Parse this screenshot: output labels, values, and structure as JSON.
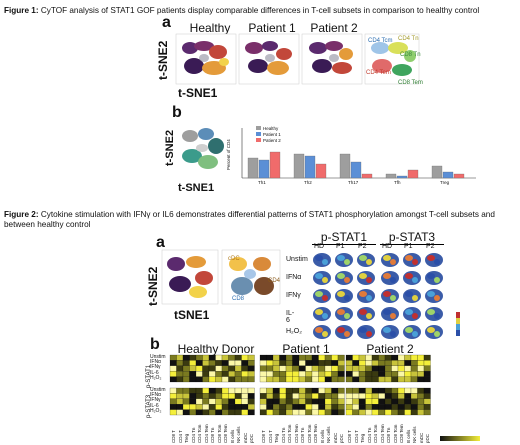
{
  "figure1": {
    "caption_label": "Figure 1:",
    "caption_text": " CyTOF analysis of STAT1 GOF patients display comparable differences in T-cell subsets in comparison to healthy control",
    "panel_a": "a",
    "panel_b": "b",
    "columns": [
      "Healthy",
      "Patient 1",
      "Patient 2"
    ],
    "y_axis": "t-SNE2",
    "x_axis": "t-SNE1",
    "map_labels": [
      "CD4 Tcm",
      "CD4 Tn",
      "CD8 Tn",
      "CD4 Tem",
      "CD8 Tem"
    ],
    "legend": [
      "Healthy",
      "Patient 1",
      "Patient 2"
    ],
    "bar_ylabel": "Percent of CD4",
    "bar_categories": [
      "Th1",
      "Th2",
      "Th17",
      "Tfh",
      "Treg"
    ]
  },
  "figure2": {
    "caption_label": "Figure 2:",
    "caption_text": " Cytokine stimulation with IFNγ  or IL6 demonstrates differential patterns of STAT1 phosphorylation amongst T-cell subsets and between healthy control",
    "panel_a": "a",
    "panel_b": "b",
    "y_axis": "t-SNE2",
    "x_axis": "tSNE1",
    "groups": [
      "p-STAT1",
      "p-STAT3"
    ],
    "subcols": [
      "HD",
      "P1",
      "P2",
      "HD",
      "P1",
      "P2"
    ],
    "rows": [
      "Unstim",
      "IFNα",
      "IFNγ",
      "IL-6",
      "H₂O₂"
    ],
    "cluster_labels": [
      "cDC",
      "CD8",
      "CD4"
    ],
    "heat_titles": [
      "Healthy Donor",
      "Patient 1",
      "Patient 2"
    ],
    "heat_group_labels": [
      "p-STAT1",
      "p-STAT3"
    ],
    "heat_rows": [
      "Unstim",
      "IFNα",
      "IFNγ",
      "IL-6",
      "H₂O₂"
    ],
    "heat_cols": [
      "CD8 T",
      "CD4 T",
      "Treg",
      "CD4 Tn",
      "CD4 Tcm",
      "CD4 Tem",
      "CD8 Tn",
      "CD8 Tcm",
      "CD8 Tem",
      "B cells",
      "NK cells",
      "mDC",
      "pDC"
    ]
  }
}
